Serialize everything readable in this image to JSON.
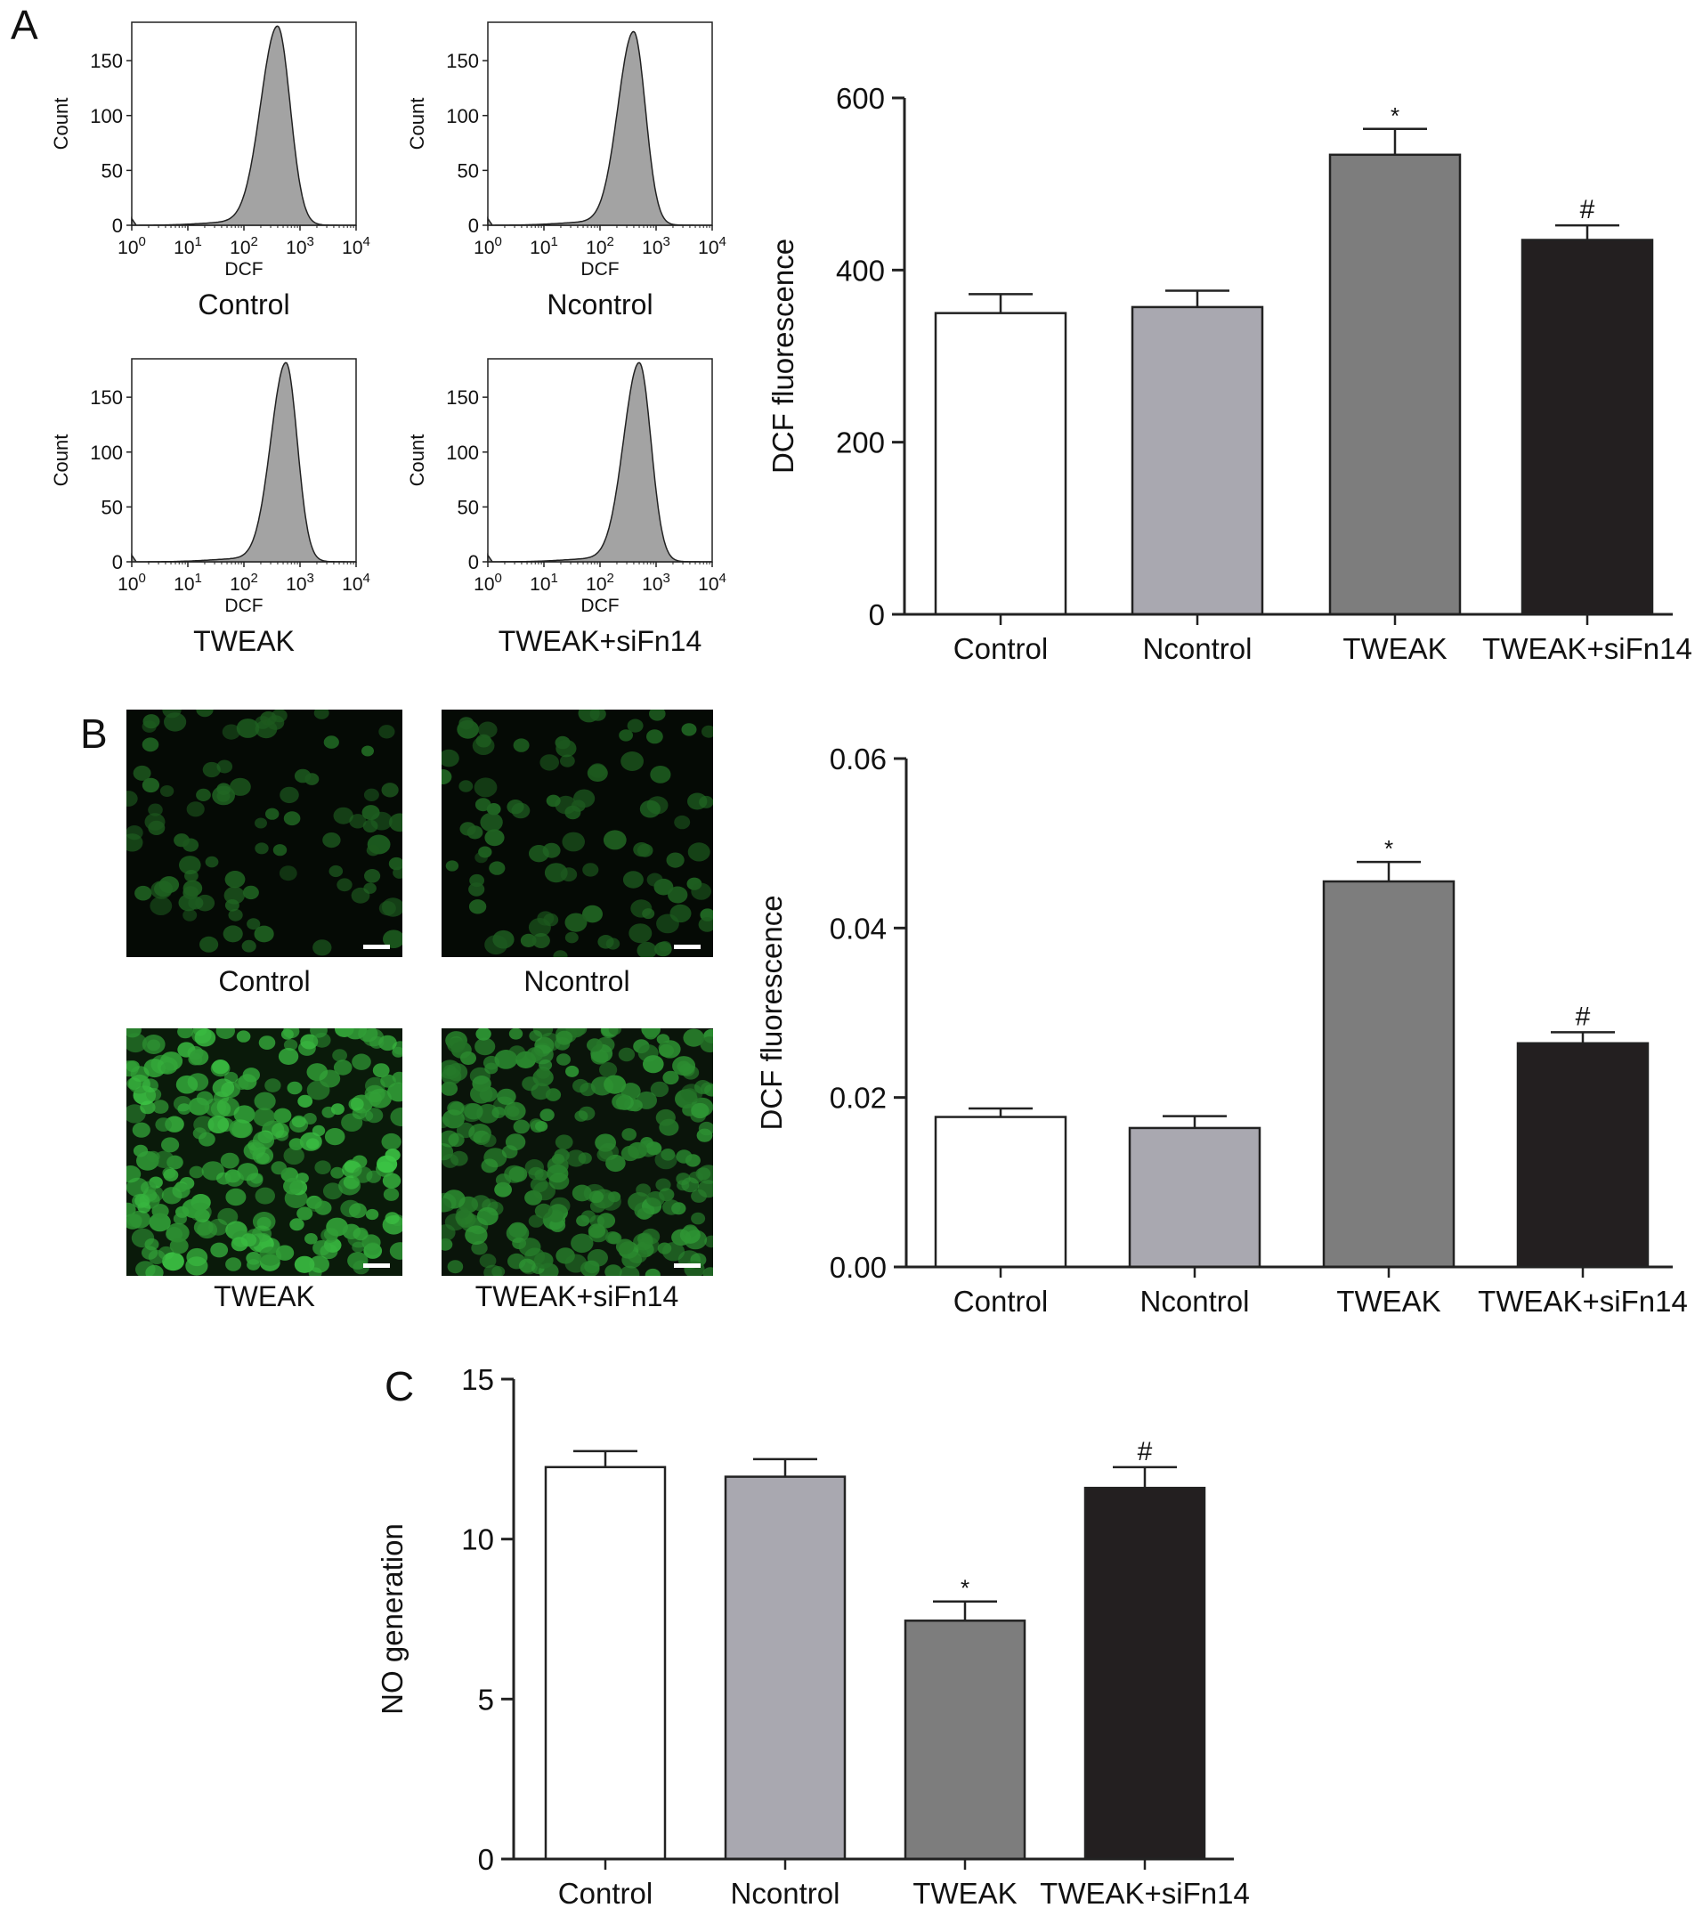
{
  "panels": [
    {
      "letter": "A"
    },
    {
      "letter": "B"
    },
    {
      "letter": "C"
    }
  ],
  "histograms": [
    {
      "caption": "Control",
      "ylabel": "Count",
      "xlabel": "DCF",
      "yticks": [
        0,
        50,
        100,
        150
      ],
      "ylim": [
        0,
        185
      ],
      "xticks": [
        "10^0",
        "10^1",
        "10^2",
        "10^3",
        "10^4"
      ],
      "peak_log10": 2.6,
      "peak_count": 180,
      "spread": 0.3
    },
    {
      "caption": "Ncontrol",
      "ylabel": "Count",
      "xlabel": "DCF",
      "yticks": [
        0,
        50,
        100,
        150
      ],
      "ylim": [
        0,
        185
      ],
      "xticks": [
        "10^0",
        "10^1",
        "10^2",
        "10^3",
        "10^4"
      ],
      "peak_log10": 2.6,
      "peak_count": 175,
      "spread": 0.28
    },
    {
      "caption": "TWEAK",
      "ylabel": "Count",
      "xlabel": "DCF",
      "yticks": [
        0,
        50,
        100,
        150
      ],
      "ylim": [
        0,
        185
      ],
      "xticks": [
        "10^0",
        "10^1",
        "10^2",
        "10^3",
        "10^4"
      ],
      "peak_log10": 2.75,
      "peak_count": 180,
      "spread": 0.27
    },
    {
      "caption": "TWEAK+siFn14",
      "ylabel": "Count",
      "xlabel": "DCF",
      "yticks": [
        0,
        50,
        100,
        150
      ],
      "ylim": [
        0,
        185
      ],
      "xticks": [
        "10^0",
        "10^1",
        "10^2",
        "10^3",
        "10^4"
      ],
      "peak_log10": 2.7,
      "peak_count": 180,
      "spread": 0.28
    }
  ],
  "micrographs": [
    {
      "caption": "Control",
      "brightness": 0.25,
      "density": 0.35
    },
    {
      "caption": "Ncontrol",
      "brightness": 0.25,
      "density": 0.35
    },
    {
      "caption": "TWEAK",
      "brightness": 0.75,
      "density": 1.0
    },
    {
      "caption": "TWEAK+siFn14",
      "brightness": 0.5,
      "density": 1.0
    }
  ],
  "chart_data": [
    {
      "type": "bar",
      "categories": [
        "Control",
        "Ncontrol",
        "TWEAK",
        "TWEAK+siFn14"
      ],
      "values": [
        350,
        357,
        534,
        435
      ],
      "errors": [
        22,
        19,
        30,
        17
      ],
      "annotations": [
        "",
        "",
        "*",
        "#"
      ],
      "colors": [
        "#ffffff",
        "#a9a8b0",
        "#7d7d7d",
        "#231f20"
      ],
      "ylabel": "DCF fluorescence",
      "ylim": [
        0,
        600
      ],
      "yticks": [
        "0",
        "200",
        "400",
        "600"
      ]
    },
    {
      "type": "bar",
      "categories": [
        "Control",
        "Ncontrol",
        "TWEAK",
        "TWEAK+siFn14"
      ],
      "values": [
        0.0177,
        0.0164,
        0.0455,
        0.0264
      ],
      "errors": [
        0.001,
        0.0014,
        0.0023,
        0.0013
      ],
      "annotations": [
        "",
        "",
        "*",
        "#"
      ],
      "colors": [
        "#ffffff",
        "#a9a8b0",
        "#7d7d7d",
        "#231f20"
      ],
      "ylabel": "DCF fluorescence",
      "ylim": [
        0,
        0.06
      ],
      "yticks": [
        "0.00",
        "0.02",
        "0.04",
        "0.06"
      ]
    },
    {
      "type": "bar",
      "categories": [
        "Control",
        "Ncontrol",
        "TWEAK",
        "TWEAK+siFn14"
      ],
      "values": [
        12.25,
        11.95,
        7.45,
        11.6
      ],
      "errors": [
        0.5,
        0.55,
        0.6,
        0.65
      ],
      "annotations": [
        "",
        "",
        "*",
        "#"
      ],
      "colors": [
        "#ffffff",
        "#a9a8b0",
        "#7d7d7d",
        "#231f20"
      ],
      "ylabel": "NO generation",
      "ylim": [
        0,
        15
      ],
      "yticks": [
        "0",
        "5",
        "10",
        "15"
      ]
    }
  ]
}
